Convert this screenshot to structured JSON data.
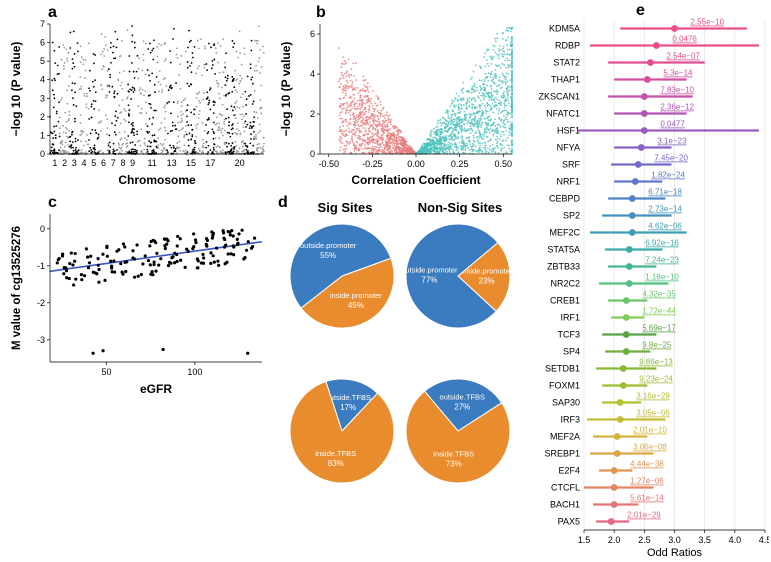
{
  "panelA": {
    "label": "a",
    "type": "manhattan",
    "xlabel": "Chromosome",
    "ylabel": "−log 10 (P value)",
    "xticks": [
      "1",
      "2",
      "3",
      "4",
      "5",
      "6",
      "7",
      "8",
      "9",
      "11",
      "13",
      "15",
      "17",
      "20"
    ],
    "yticks": [
      0,
      1,
      2,
      3,
      4,
      5,
      6,
      7
    ],
    "ylim": [
      0,
      7
    ],
    "chrom_count": 22,
    "alt_colors": [
      "#000000",
      "#9a9a9a"
    ],
    "background": "#ffffff"
  },
  "panelB": {
    "label": "b",
    "type": "volcano-scatter",
    "xlabel": "Correlation Coefficient",
    "ylabel": "−log 10 (P value)",
    "xticks": [
      -0.5,
      -0.25,
      0.0,
      0.25,
      0.5
    ],
    "yticks": [
      0,
      2,
      4,
      6
    ],
    "xlim": [
      -0.55,
      0.55
    ],
    "ylim": [
      0,
      6.5
    ],
    "neg_color": "#e77b7b",
    "pos_color": "#4bc1bb",
    "background": "#ffffff"
  },
  "panelC": {
    "label": "c",
    "type": "scatter",
    "xlabel": "eGFR",
    "ylabel": "M value of cg13525276",
    "xticks": [
      50,
      100
    ],
    "yticks": [
      -3,
      -2,
      -1,
      0
    ],
    "xlim": [
      18,
      138
    ],
    "ylim": [
      -3.6,
      0.4
    ],
    "point_color": "#000000",
    "line_color": "#3b57c4",
    "line_start": [
      18,
      -1.15
    ],
    "line_end": [
      138,
      -0.35
    ]
  },
  "panelD": {
    "label": "d",
    "titles": [
      "Sig Sites",
      "Non-Sig Sites"
    ],
    "title_fontsize": 13,
    "pies": [
      {
        "slices": [
          {
            "label": "inside.promoter",
            "pct": 45,
            "color": "#e88c2e"
          },
          {
            "label": "outside.promoter",
            "pct": 55,
            "color": "#3b7bbf"
          }
        ],
        "start_angle": -20
      },
      {
        "slices": [
          {
            "label": "inside.promoter",
            "pct": 23,
            "color": "#e88c2e"
          },
          {
            "label": "outside.promoter",
            "pct": 77,
            "color": "#3b7bbf"
          }
        ],
        "start_angle": -40
      },
      {
        "slices": [
          {
            "label": "outside.TFBS",
            "pct": 17,
            "color": "#3b7bbf"
          },
          {
            "label": "inside.TFBS",
            "pct": 83,
            "color": "#e88c2e"
          }
        ],
        "start_angle": -108
      },
      {
        "slices": [
          {
            "label": "outside.TFBS",
            "pct": 27,
            "color": "#3b7bbf"
          },
          {
            "label": "inside.TFBS",
            "pct": 73,
            "color": "#e88c2e"
          }
        ],
        "start_angle": -130
      }
    ]
  },
  "panelE": {
    "label": "e",
    "type": "forest",
    "xlabel": "Odd Ratios",
    "xticks": [
      1.5,
      2.0,
      2.5,
      3.0,
      3.5,
      4.0,
      4.5
    ],
    "xlim": [
      1.5,
      4.5
    ],
    "rows": [
      {
        "name": "KDM5A",
        "or": 3.0,
        "lo": 2.1,
        "hi": 4.2,
        "p": "2.55e−10",
        "color": "#e94f8a"
      },
      {
        "name": "RDBP",
        "or": 2.7,
        "lo": 1.6,
        "hi": 4.4,
        "p": "0.0476",
        "color": "#e94f8a"
      },
      {
        "name": "STAT2",
        "or": 2.6,
        "lo": 1.9,
        "hi": 3.5,
        "p": "2.54e−07",
        "color": "#e04f93"
      },
      {
        "name": "THAP1",
        "or": 2.55,
        "lo": 2.0,
        "hi": 3.2,
        "p": "5.3e−14",
        "color": "#d350a0"
      },
      {
        "name": "ZKSCAN1",
        "or": 2.5,
        "lo": 1.9,
        "hi": 3.3,
        "p": "7.83e−10",
        "color": "#c452aa"
      },
      {
        "name": "NFATC1",
        "or": 2.5,
        "lo": 2.0,
        "hi": 3.2,
        "p": "2.36e−12",
        "color": "#b055b4"
      },
      {
        "name": "HSF1",
        "or": 2.5,
        "lo": 1.4,
        "hi": 4.4,
        "p": "0.0477",
        "color": "#9a5cbe"
      },
      {
        "name": "NFYA",
        "or": 2.45,
        "lo": 2.0,
        "hi": 2.95,
        "p": "3.1e−23",
        "color": "#8562c6"
      },
      {
        "name": "SRF",
        "or": 2.4,
        "lo": 1.95,
        "hi": 2.95,
        "p": "7.45e−20",
        "color": "#726bca"
      },
      {
        "name": "NRF1",
        "or": 2.35,
        "lo": 2.0,
        "hi": 2.8,
        "p": "1.82e−24",
        "color": "#5f76cb"
      },
      {
        "name": "CEBPD",
        "or": 2.3,
        "lo": 1.9,
        "hi": 2.85,
        "p": "6.71e−18",
        "color": "#5083c6"
      },
      {
        "name": "SP2",
        "or": 2.3,
        "lo": 1.8,
        "hi": 2.95,
        "p": "2.73e−14",
        "color": "#4491be"
      },
      {
        "name": "MEF2C",
        "or": 2.3,
        "lo": 1.6,
        "hi": 3.2,
        "p": "4.62e−06",
        "color": "#3d9eb4"
      },
      {
        "name": "STAT5A",
        "or": 2.25,
        "lo": 1.85,
        "hi": 2.8,
        "p": "6.92e−16",
        "color": "#3caba6"
      },
      {
        "name": "ZBTB33",
        "or": 2.25,
        "lo": 1.9,
        "hi": 2.7,
        "p": "7.24e−23",
        "color": "#43b695"
      },
      {
        "name": "NR2C2",
        "or": 2.25,
        "lo": 1.75,
        "hi": 2.9,
        "p": "1.18e−10",
        "color": "#54c081"
      },
      {
        "name": "CREB1",
        "or": 2.2,
        "lo": 1.9,
        "hi": 2.55,
        "p": "4.32e−35",
        "color": "#6ac66b"
      },
      {
        "name": "IRF1",
        "or": 2.2,
        "lo": 1.95,
        "hi": 2.5,
        "p": "1.72e−44",
        "color": "#82cb56"
      },
      {
        "name": "TCF3",
        "or": 2.2,
        "lo": 1.8,
        "hi": 2.7,
        "p": "5.69e−17",
        "color": "#58a245"
      },
      {
        "name": "SP4",
        "or": 2.2,
        "lo": 1.85,
        "hi": 2.6,
        "p": "9.8e−25",
        "color": "#6fae3f"
      },
      {
        "name": "SETDB1",
        "or": 2.15,
        "lo": 1.7,
        "hi": 2.7,
        "p": "9.86e−13",
        "color": "#88b738"
      },
      {
        "name": "FOXM1",
        "or": 2.15,
        "lo": 1.8,
        "hi": 2.55,
        "p": "9.23e−24",
        "color": "#9fbd33"
      },
      {
        "name": "SAP30",
        "or": 2.1,
        "lo": 1.8,
        "hi": 2.45,
        "p": "3.16e−28",
        "color": "#b5c031"
      },
      {
        "name": "IRF3",
        "or": 2.1,
        "lo": 1.55,
        "hi": 2.85,
        "p": "3.05e−06",
        "color": "#c6bc33"
      },
      {
        "name": "MEF2A",
        "or": 2.05,
        "lo": 1.65,
        "hi": 2.55,
        "p": "2.01e−10",
        "color": "#d3b339"
      },
      {
        "name": "SREBP1",
        "or": 2.05,
        "lo": 1.6,
        "hi": 2.65,
        "p": "3.06e−08",
        "color": "#dba644"
      },
      {
        "name": "E2F4",
        "or": 2.0,
        "lo": 1.75,
        "hi": 2.3,
        "p": "4.44e−38",
        "color": "#e19652"
      },
      {
        "name": "CTCFL",
        "or": 2.0,
        "lo": 1.5,
        "hi": 2.65,
        "p": "1.27e−06",
        "color": "#e48562"
      },
      {
        "name": "BACH1",
        "or": 2.0,
        "lo": 1.65,
        "hi": 2.4,
        "p": "5.61e−14",
        "color": "#e57474"
      },
      {
        "name": "PAX5",
        "or": 1.95,
        "lo": 1.7,
        "hi": 2.25,
        "p": "2.01e−29",
        "color": "#e56784"
      }
    ]
  }
}
